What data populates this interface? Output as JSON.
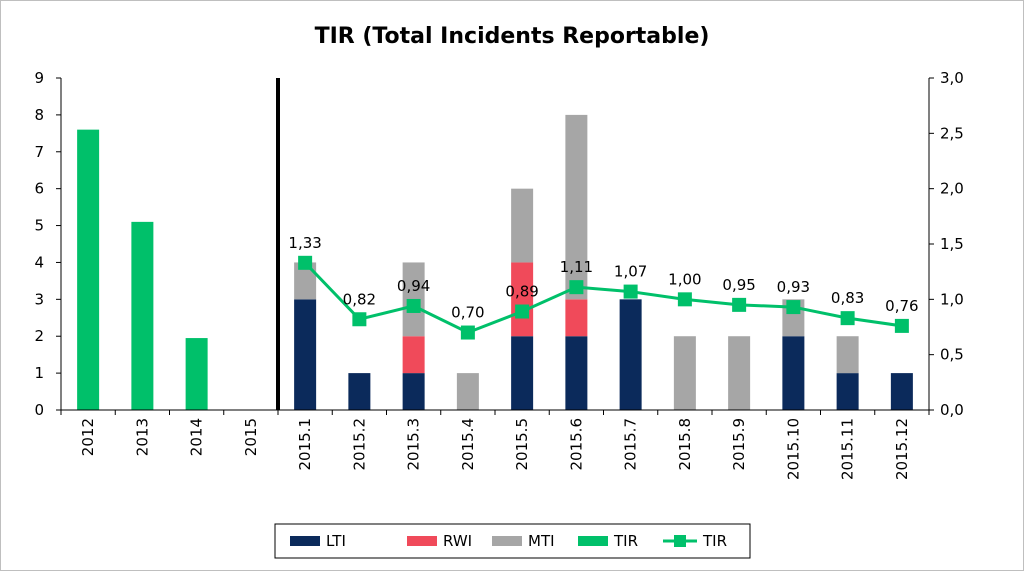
{
  "chart_data": {
    "type": "bar",
    "title": "TIR (Total Incidents Reportable)",
    "categories": [
      "2012",
      "2013",
      "2014",
      "2015",
      "2015.1",
      "2015.2",
      "2015.3",
      "2015.4",
      "2015.5",
      "2015.6",
      "2015.7",
      "2015.8",
      "2015.9",
      "2015.10",
      "2015.11",
      "2015.12"
    ],
    "ylim": [
      0,
      9
    ],
    "y_ticks": [
      "0",
      "1",
      "2",
      "3",
      "4",
      "5",
      "6",
      "7",
      "8",
      "9"
    ],
    "y2lim": [
      0,
      3
    ],
    "y2_ticks": [
      "0,0",
      "0,5",
      "1,0",
      "1,5",
      "2,0",
      "2,5",
      "3,0"
    ],
    "grid": false,
    "legend_position": "bottom",
    "series": [
      {
        "name": "LTI",
        "kind": "stacked-bar",
        "color": "#0b2a5b",
        "values": [
          null,
          null,
          null,
          null,
          3,
          1,
          1,
          0,
          2,
          2,
          3,
          0,
          0,
          2,
          1,
          1
        ]
      },
      {
        "name": "RWI",
        "kind": "stacked-bar",
        "color": "#f04a5a",
        "values": [
          null,
          null,
          null,
          null,
          0,
          0,
          1,
          0,
          2,
          1,
          0,
          0,
          0,
          0,
          0,
          0
        ]
      },
      {
        "name": "MTI",
        "kind": "stacked-bar",
        "color": "#a6a6a6",
        "values": [
          null,
          null,
          null,
          null,
          1,
          0,
          2,
          1,
          2,
          5,
          0,
          2,
          2,
          1,
          1,
          0
        ]
      },
      {
        "name": "TIR",
        "kind": "bar",
        "color": "#00c06a",
        "values": [
          7.6,
          5.1,
          1.95,
          0,
          null,
          null,
          null,
          null,
          null,
          null,
          null,
          null,
          null,
          null,
          null,
          null
        ]
      },
      {
        "name": "TIR",
        "kind": "line",
        "axis": "secondary",
        "color": "#00c06a",
        "values": [
          null,
          null,
          null,
          null,
          1.33,
          0.82,
          0.94,
          0.7,
          0.89,
          1.11,
          1.07,
          1.0,
          0.95,
          0.93,
          0.83,
          0.76
        ],
        "labels": [
          "",
          "",
          "",
          "",
          "1,33",
          "0,82",
          "0,94",
          "0,70",
          "0,89",
          "1,11",
          "1,07",
          "1,00",
          "0,95",
          "0,93",
          "0,83",
          "0,76"
        ]
      }
    ]
  }
}
